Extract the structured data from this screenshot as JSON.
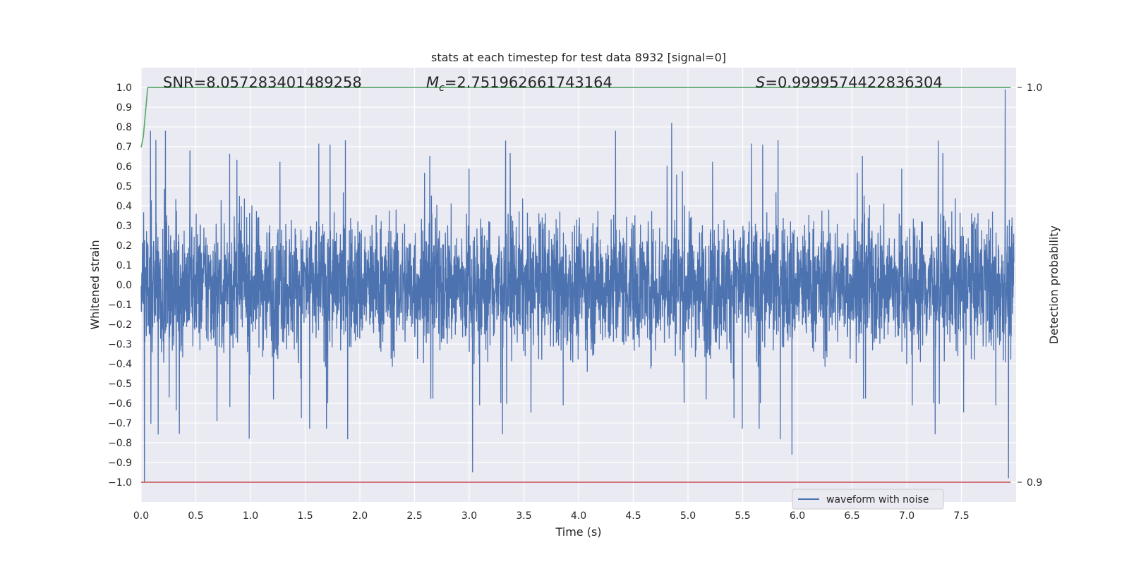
{
  "chart_data": {
    "type": "line",
    "title": "stats at each timestep for test data 8932 [signal=0]",
    "xlabel": "Time (s)",
    "ylabel": "Whitened strain",
    "ylabel_right": "Detection probability",
    "xlim": [
      0.0,
      8.0
    ],
    "ylim": [
      -1.1,
      1.1
    ],
    "ylim_right": [
      0.9,
      1.0
    ],
    "x_ticks": [
      "0.0",
      "0.5",
      "1.0",
      "1.5",
      "2.0",
      "2.5",
      "3.0",
      "3.5",
      "4.0",
      "4.5",
      "5.0",
      "5.5",
      "6.0",
      "6.5",
      "7.0",
      "7.5"
    ],
    "y_ticks": [
      "1.0",
      "0.9",
      "0.8",
      "0.7",
      "0.6",
      "0.5",
      "0.4",
      "0.3",
      "0.2",
      "0.1",
      "0.0",
      "−0.1",
      "−0.2",
      "−0.3",
      "−0.4",
      "−0.5",
      "−0.6",
      "−0.7",
      "−0.8",
      "−0.9",
      "−1.0"
    ],
    "y_ticks_right": [
      "1.0",
      "0.9"
    ],
    "grid": true,
    "legend_position": "lower-right",
    "annotations": {
      "snr": "SNR=8.057283401489258",
      "mc_symbol": "M",
      "mc_sub": "c",
      "mc_value": "=2.751962661743164",
      "s_symbol": "S",
      "s_value": "=0.9999574422836304"
    },
    "series": [
      {
        "name": "waveform with noise",
        "color": "#4c72b0",
        "axis": "left",
        "description": "dense noisy whitened strain, approx. uniform amplitude",
        "envelope": {
          "typical_abs": 0.3,
          "upper_peaks": 0.8,
          "lower_peaks": -0.95
        },
        "notable_extremes": [
          {
            "x": 0.03,
            "y": -1.0
          },
          {
            "x": 3.03,
            "y": -0.95
          },
          {
            "x": 4.85,
            "y": 0.82
          },
          {
            "x": 5.95,
            "y": -0.86
          },
          {
            "x": 7.9,
            "y": 0.99
          },
          {
            "x": 7.93,
            "y": -0.98
          }
        ]
      },
      {
        "name": "",
        "color": "#55a868",
        "axis": "right",
        "x": [
          0.0,
          0.02,
          0.06,
          7.95
        ],
        "y": [
          0.9848,
          0.9875,
          0.99996,
          0.99996
        ]
      },
      {
        "name": "",
        "color": "#c44e52",
        "axis": "right",
        "x": [
          0.0,
          7.95
        ],
        "y": [
          0.9,
          0.9
        ]
      }
    ]
  }
}
